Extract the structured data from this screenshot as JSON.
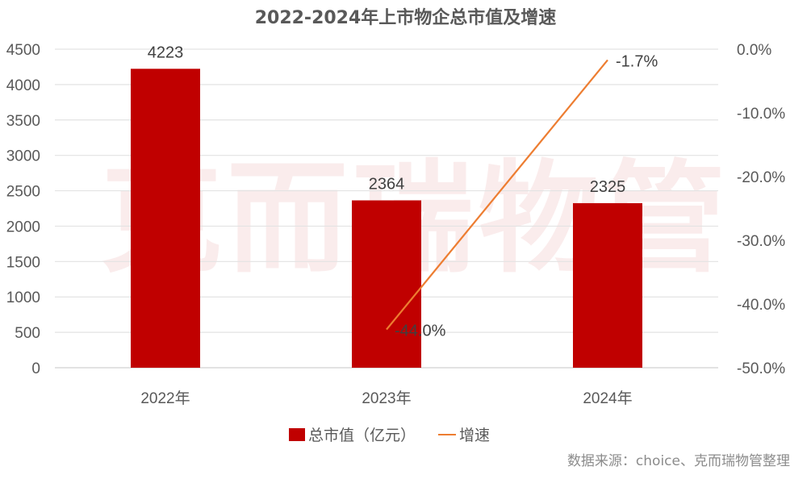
{
  "chart_data": {
    "type": "bar+line",
    "title": "2022-2024年上市物企总市值及增速",
    "categories": [
      "2022年",
      "2023年",
      "2024年"
    ],
    "series": [
      {
        "name": "总市值（亿元）",
        "type": "bar",
        "axis": "left",
        "color": "#c00000",
        "values": [
          4223,
          2364,
          2325
        ],
        "labels": [
          "4223",
          "2364",
          "2325"
        ]
      },
      {
        "name": "增速",
        "type": "line",
        "axis": "right",
        "color": "#ed7d31",
        "x_categories": [
          "2023年",
          "2024年"
        ],
        "values": [
          -44.0,
          -1.7
        ],
        "labels": [
          "-44.0%",
          "-1.7%"
        ]
      }
    ],
    "y_left": {
      "min": 0,
      "max": 4500,
      "step": 500,
      "ticks": [
        "4500",
        "4000",
        "3500",
        "3000",
        "2500",
        "2000",
        "1500",
        "1000",
        "500",
        "0"
      ]
    },
    "y_right": {
      "min": -50,
      "max": 0,
      "step": 10,
      "ticks": [
        "0.0%",
        "-10.0%",
        "-20.0%",
        "-30.0%",
        "-40.0%",
        "-50.0%"
      ]
    },
    "xlabel": "",
    "ylabel": "",
    "grid": true,
    "legend_position": "bottom"
  },
  "legend": {
    "bar_label": "总市值（亿元）",
    "line_label": "增速"
  },
  "source": "数据来源：choice、克而瑞物管整理",
  "watermark": "克而瑞物管"
}
